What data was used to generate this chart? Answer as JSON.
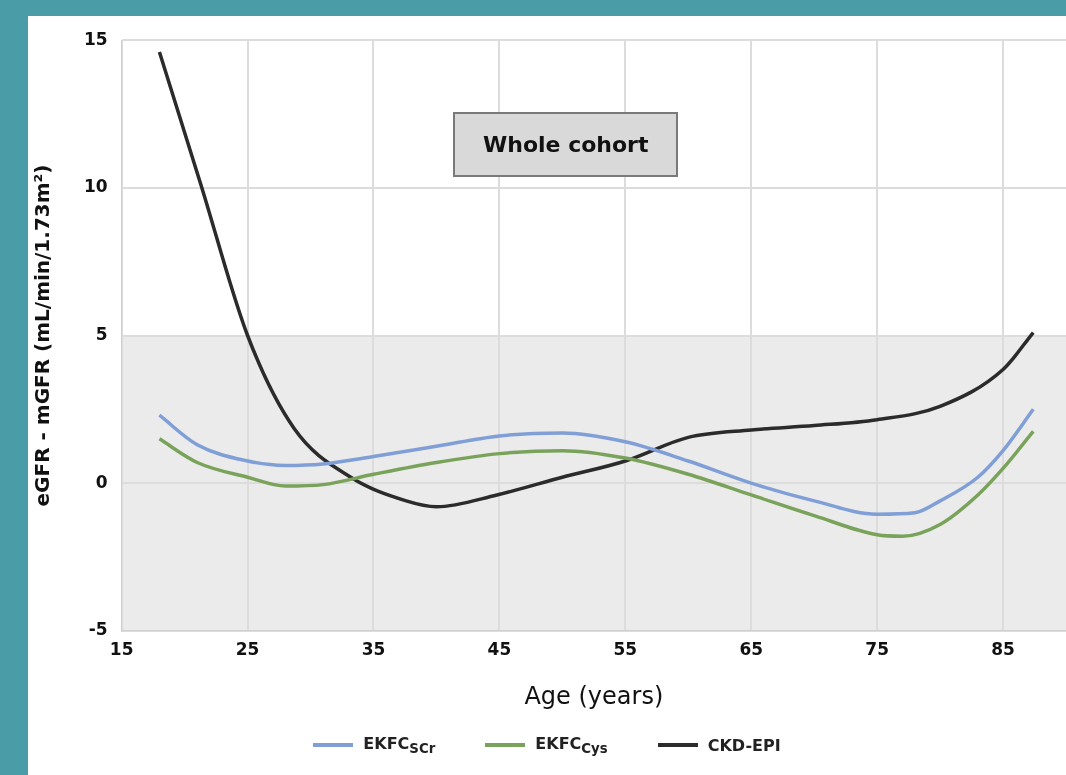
{
  "chart_data": {
    "type": "line",
    "xlabel": "Age (years)",
    "ylabel": "eGFR - mGFR (mL/min/1.73m²)",
    "annotations": [
      "Whole cohort"
    ],
    "xlim": [
      15,
      90
    ],
    "xticks": [
      15,
      25,
      35,
      45,
      55,
      65,
      75,
      85
    ],
    "ylim": [
      -5,
      15
    ],
    "yticks": [
      -5,
      0,
      5,
      10,
      15
    ],
    "grid": true,
    "legend": "bottom",
    "marker": "none",
    "line_style": "solid",
    "bands": [
      {
        "axis": "y",
        "from": -5,
        "to": 5,
        "color": "#ebebeb"
      }
    ],
    "series": [
      {
        "name": "EKFC$_{SCr}$",
        "color": "#7f9fd6",
        "x": [
          18,
          21,
          25,
          28,
          31,
          35,
          40,
          45,
          50,
          55,
          60,
          65,
          70,
          75,
          78,
          80,
          83,
          85,
          87.4
        ],
        "values": [
          2.3,
          1.3,
          0.75,
          0.6,
          0.65,
          0.9,
          1.25,
          1.6,
          1.7,
          1.4,
          0.75,
          0,
          -0.6,
          -1.05,
          -1.0,
          -0.6,
          0.2,
          1.1,
          2.5
        ]
      },
      {
        "name": "EKFC$_{Cys}$",
        "color": "#79a35a",
        "x": [
          18,
          21,
          25,
          28,
          31,
          35,
          40,
          45,
          50,
          55,
          60,
          65,
          70,
          75,
          77,
          80,
          83,
          85,
          87.4
        ],
        "values": [
          1.5,
          0.7,
          0.2,
          -0.1,
          -0.05,
          0.3,
          0.7,
          1.0,
          1.1,
          0.85,
          0.3,
          -0.4,
          -1.1,
          -1.75,
          -1.8,
          -1.4,
          -0.4,
          0.5,
          1.75
        ]
      },
      {
        "name": "CKD-EPI",
        "color": "#2b2b2b",
        "x": [
          18,
          21.3,
          25,
          28.7,
          33.2,
          37.6,
          40,
          44.8,
          50,
          55,
          60,
          65,
          70,
          75,
          80,
          85,
          87.4
        ],
        "values": [
          14.6,
          10.1,
          5.0,
          1.85,
          0.2,
          -0.6,
          -0.8,
          -0.4,
          0.2,
          0.75,
          1.55,
          1.8,
          1.95,
          2.15,
          2.6,
          3.85,
          5.1
        ]
      }
    ]
  }
}
